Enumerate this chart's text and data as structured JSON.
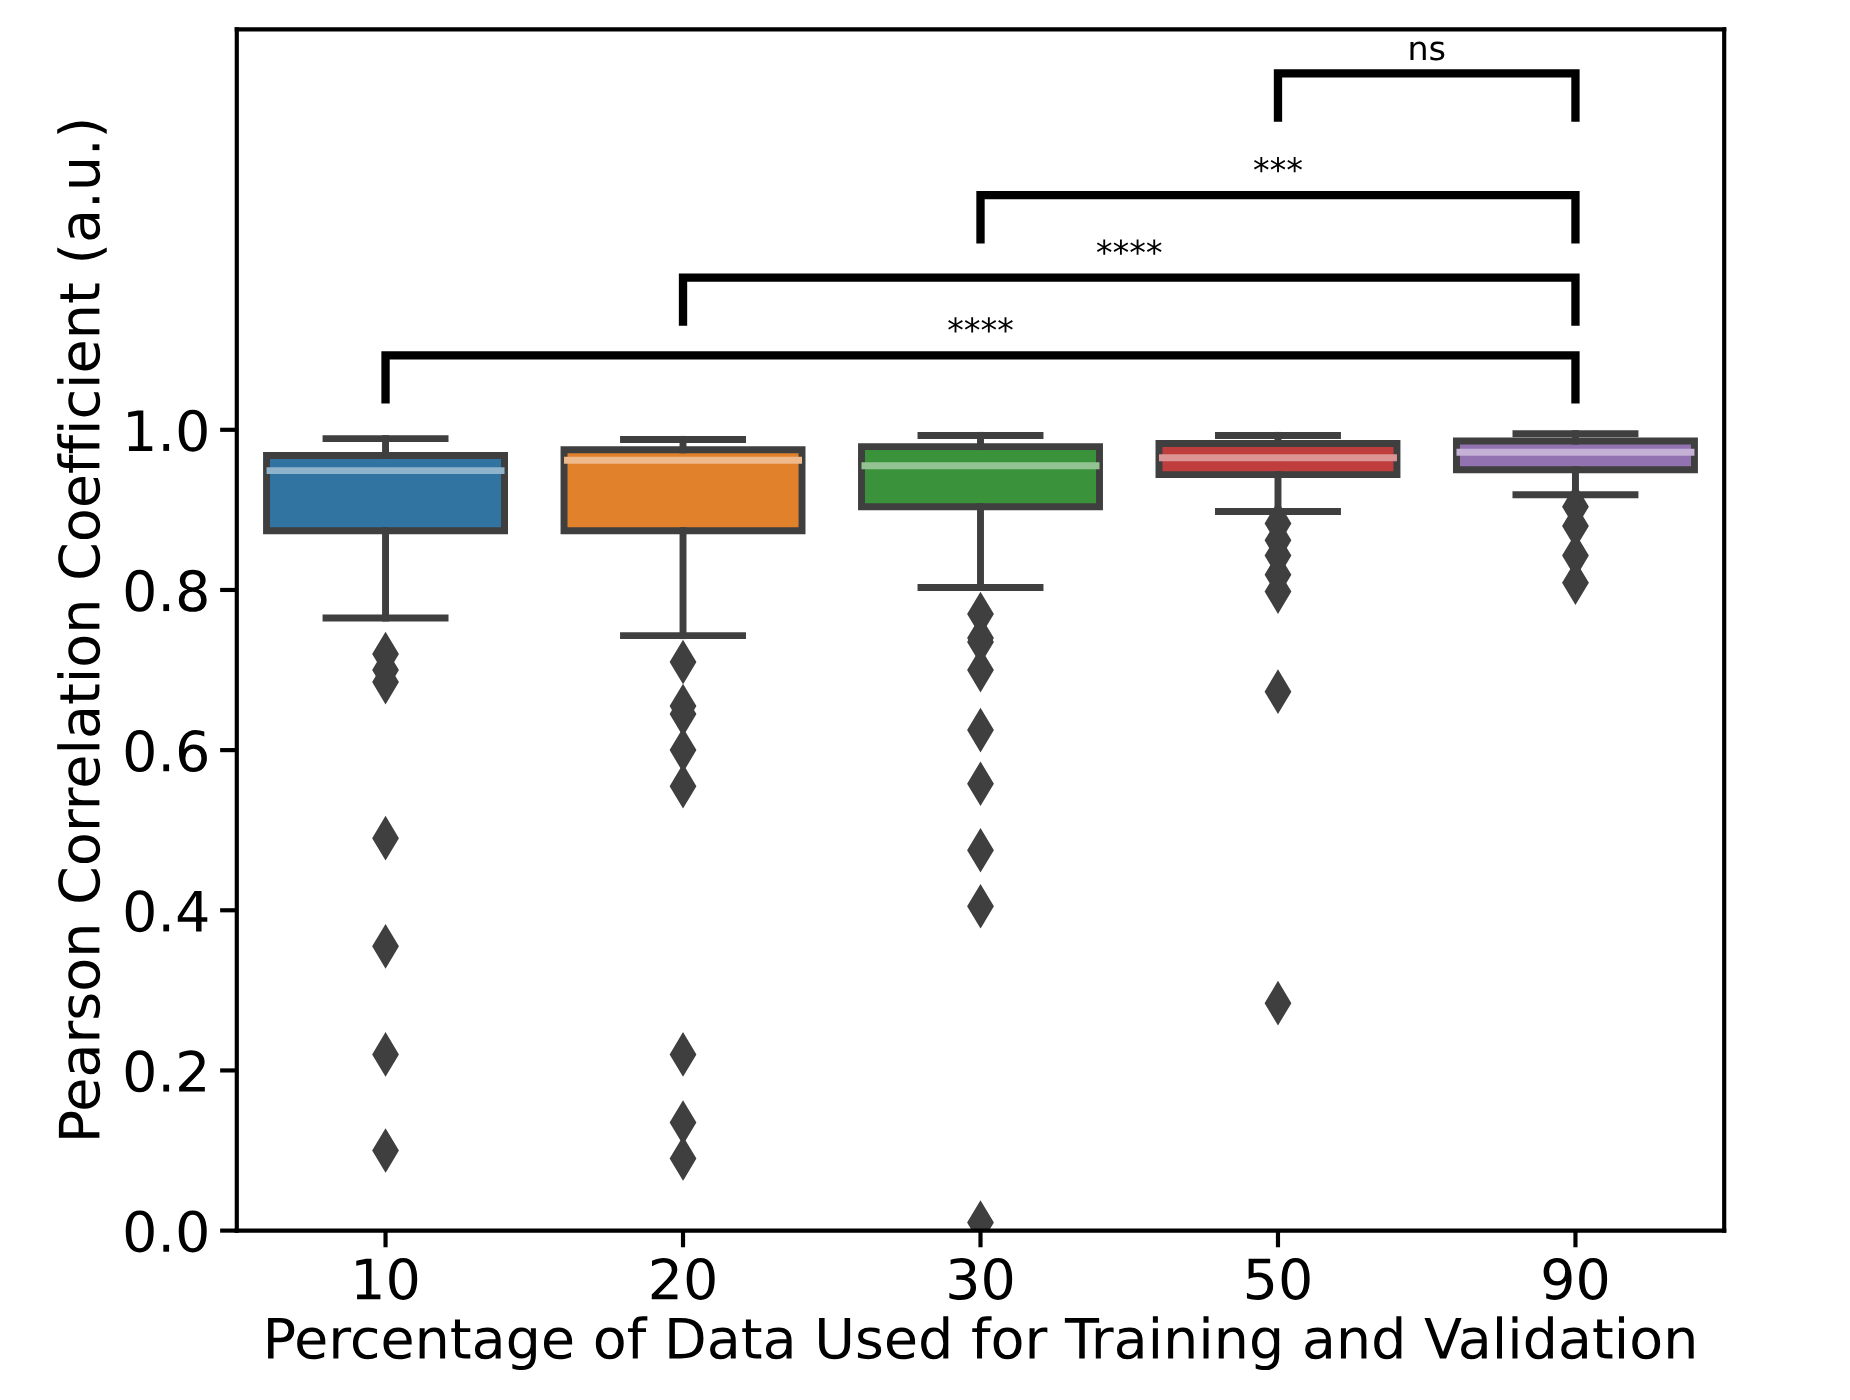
{
  "chart_data": {
    "type": "box",
    "xlabel": "Percentage of Data Used for Training and Validation",
    "ylabel": "Pearson Correlation Coefficient (a.u.)",
    "categories": [
      "10",
      "20",
      "30",
      "50",
      "90"
    ],
    "colors": [
      "#3274a1",
      "#e1812c",
      "#3a923a",
      "#c03d3e",
      "#9372b2"
    ],
    "boxes": [
      {
        "low": 0.765,
        "q1": 0.874,
        "median": 0.949,
        "q3": 0.968,
        "high": 0.989,
        "outliers": [
          0.72,
          0.7,
          0.685,
          0.49,
          0.355,
          0.22,
          0.1
        ]
      },
      {
        "low": 0.743,
        "q1": 0.874,
        "median": 0.962,
        "q3": 0.975,
        "high": 0.988,
        "outliers": [
          0.71,
          0.655,
          0.645,
          0.6,
          0.555,
          0.22,
          0.135,
          0.09
        ]
      },
      {
        "low": 0.803,
        "q1": 0.904,
        "median": 0.955,
        "q3": 0.979,
        "high": 0.993,
        "outliers": [
          0.77,
          0.74,
          0.735,
          0.7,
          0.625,
          0.558,
          0.475,
          0.405,
          0.01
        ]
      },
      {
        "low": 0.898,
        "q1": 0.944,
        "median": 0.965,
        "q3": 0.983,
        "high": 0.993,
        "outliers": [
          0.883,
          0.862,
          0.843,
          0.819,
          0.798,
          0.673,
          0.284
        ]
      },
      {
        "low": 0.919,
        "q1": 0.95,
        "median": 0.972,
        "q3": 0.986,
        "high": 0.995,
        "outliers": [
          0.904,
          0.88,
          0.843,
          0.809
        ]
      }
    ],
    "ylim": [
      0,
      1.5
    ],
    "yticks": [
      {
        "value": 0,
        "label": "0.0"
      },
      {
        "value": 0.2,
        "label": "0.2"
      },
      {
        "value": 0.4,
        "label": "0.4"
      },
      {
        "value": 0.6,
        "label": "0.6"
      },
      {
        "value": 0.8,
        "label": "0.8"
      },
      {
        "value": 1.0,
        "label": "1.0"
      }
    ],
    "annotations": [
      "ns",
      "***",
      "****",
      "****"
    ],
    "marker": "diamond",
    "grid": false
  }
}
